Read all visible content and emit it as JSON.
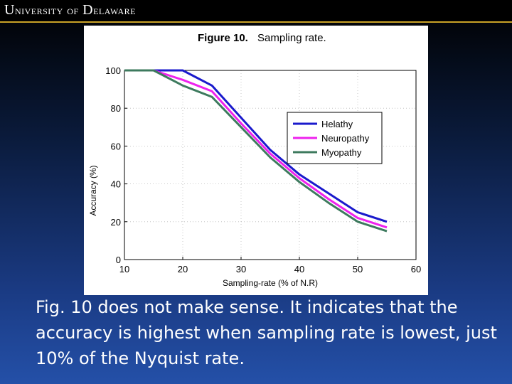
{
  "header": {
    "logo_text_1": "U",
    "logo_text_2": "NIVERSITY",
    "logo_text_3": "OF",
    "logo_text_4": "D",
    "logo_text_5": "ELAWARE"
  },
  "colors": {
    "header_accent": "#c9a227",
    "healthy": "#1a1acc",
    "neuropathy": "#ee22ee",
    "myopathy": "#3d7a5e"
  },
  "chart_data": {
    "type": "line",
    "figure_label": "Figure 10.",
    "title": "Sampling rate.",
    "xlabel": "Sampling-rate (% of N.R)",
    "ylabel": "Accuracy (%)",
    "xlim": [
      10,
      60
    ],
    "ylim": [
      0,
      100
    ],
    "xticks": [
      "10",
      "20",
      "30",
      "40",
      "50",
      "60"
    ],
    "yticks": [
      "0",
      "20",
      "40",
      "60",
      "80",
      "100"
    ],
    "grid": true,
    "legend_position": "center-right",
    "x": [
      10,
      15,
      20,
      25,
      30,
      35,
      40,
      45,
      50,
      55
    ],
    "series": [
      {
        "name": "Helathy",
        "values": [
          100,
          100,
          100,
          92,
          75,
          58,
          45,
          35,
          25,
          20
        ]
      },
      {
        "name": "Neuropathy",
        "values": [
          100,
          100,
          95,
          89,
          72,
          56,
          43,
          32,
          22,
          17
        ]
      },
      {
        "name": "Myopathy",
        "values": [
          100,
          100,
          92,
          86,
          70,
          54,
          41,
          30,
          20,
          15
        ]
      }
    ]
  },
  "caption": {
    "text": "Fig. 10 does not make sense. It indicates that the accuracy is highest when sampling rate is lowest, just 10% of the Nyquist rate."
  }
}
